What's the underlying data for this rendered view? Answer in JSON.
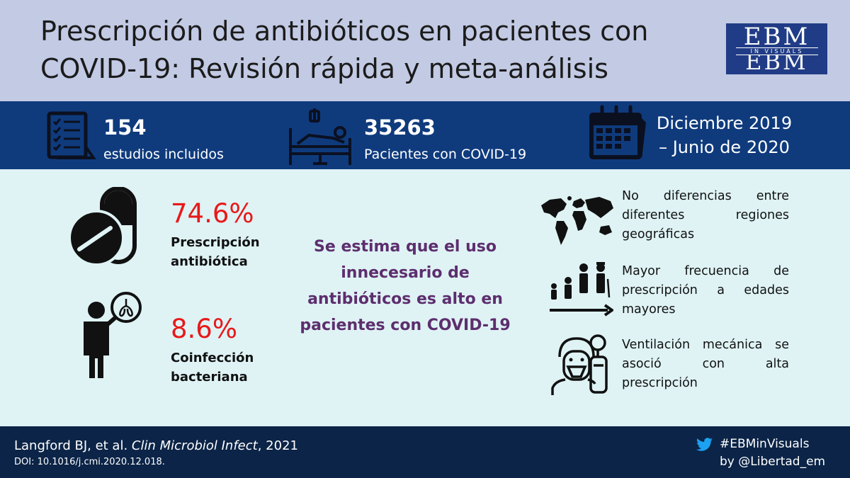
{
  "header": {
    "title": "Prescripción de antibióticos en pacientes con COVID-19: Revisión rápida y meta-análisis",
    "logo": {
      "top": "EBM",
      "band": "IN VISUALS",
      "bottom": "EBM"
    }
  },
  "stats": {
    "studies": {
      "value": "154",
      "label": "estudios incluidos",
      "icon": "checklist-icon"
    },
    "patients": {
      "value": "35263",
      "label": "Pacientes con COVID-19",
      "icon": "hospital-bed-icon"
    },
    "period": {
      "line1": "Diciembre 2019",
      "line2": "– Junio de 2020",
      "icon": "calendar-icon"
    }
  },
  "findings": {
    "prescription": {
      "value": "74.6%",
      "label": "Prescripción antibiótica",
      "icon": "pill-capsule-icon"
    },
    "coinfection": {
      "value": "8.6%",
      "label": "Coinfección bacteriana",
      "icon": "person-lungs-icon"
    }
  },
  "conclusion": "Se estima que el uso innecesario de antibióticos es alto en pacientes con COVID-19",
  "side_notes": [
    {
      "text": "No diferencias entre diferentes regiones geográficas",
      "icon": "world-map-icon"
    },
    {
      "text": "Mayor frecuencia de prescripción a edades mayores",
      "icon": "age-progression-icon"
    },
    {
      "text": "Ventilación mecánica se asoció con alta prescripción",
      "icon": "ventilated-patient-icon"
    }
  ],
  "footer": {
    "authors": "Langford BJ, et al.",
    "journal": "Clin Microbiol Infect",
    "year": ", 2021",
    "doi": "DOI: 10.1016/j.cmi.2020.12.018.",
    "hashtag": "#EBMinVisuals",
    "byline": "by @Libertad_em",
    "twitter_icon": "twitter-bird-icon"
  },
  "colors": {
    "header_bg": "#c2cae4",
    "stats_bg": "#0f3b7d",
    "content_bg": "#dff3f5",
    "footer_bg": "#0b2447",
    "percent_red": "#e8191a",
    "conclusion_purple": "#5d2e6e",
    "logo_blue": "#213c86"
  }
}
